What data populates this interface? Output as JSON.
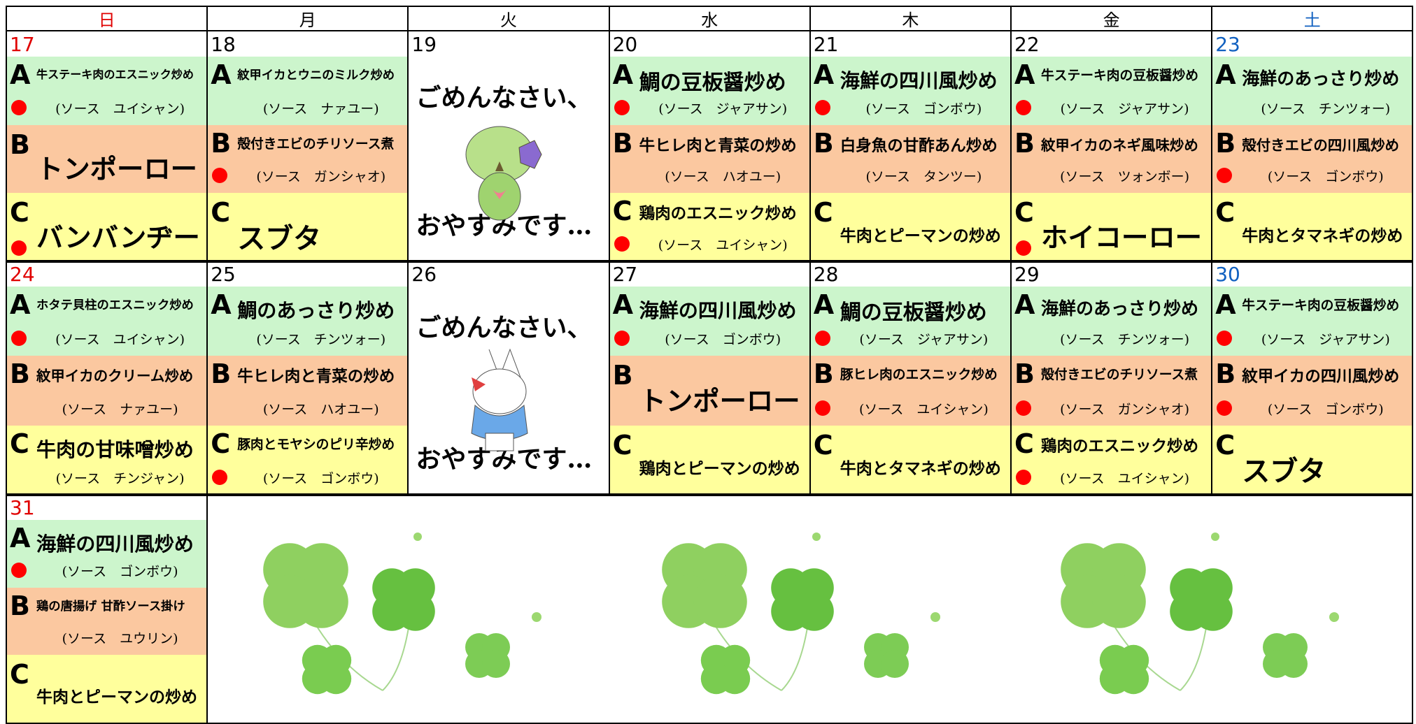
{
  "header": {
    "days": [
      "日",
      "月",
      "火",
      "水",
      "木",
      "金",
      "土"
    ]
  },
  "weeks": [
    {
      "days": [
        {
          "day": "17",
          "items": [
            {
              "letter": "A",
              "dish": "牛ステーキ肉のエスニック炒め",
              "sauce": "(ソース　ユイシャン)",
              "dot": true
            },
            {
              "letter": "B",
              "dish": "トンポーロー",
              "dot": false
            },
            {
              "letter": "C",
              "dish": "バンバンヂー",
              "dot": true
            }
          ]
        },
        {
          "day": "18",
          "items": [
            {
              "letter": "A",
              "dish": "紋甲イカとウニのミルク炒め",
              "sauce": "(ソース　ナァユー)",
              "dot": false
            },
            {
              "letter": "B",
              "dish": "殻付きエビのチリソース煮",
              "sauce": "(ソース　ガンシャオ)",
              "dot": true
            },
            {
              "letter": "C",
              "dish": "スブタ",
              "dot": false
            }
          ]
        },
        {
          "day": "19",
          "closed": [
            "ごめんなさい、",
            "おやすみです…"
          ]
        },
        {
          "day": "20",
          "items": [
            {
              "letter": "A",
              "dish": "鯛の豆板醤炒め",
              "sauce": "(ソース　ジャアサン)",
              "dot": true
            },
            {
              "letter": "B",
              "dish": "牛ヒレ肉と青菜の炒め",
              "sauce": "(ソース　ハオユー)",
              "dot": false
            },
            {
              "letter": "C",
              "dish": "鶏肉のエスニック炒め",
              "sauce": "(ソース　ユイシャン)",
              "dot": true
            }
          ]
        },
        {
          "day": "21",
          "items": [
            {
              "letter": "A",
              "dish": "海鮮の四川風炒め",
              "sauce": "(ソース　ゴンボウ)",
              "dot": true
            },
            {
              "letter": "B",
              "dish": "白身魚の甘酢あん炒め",
              "sauce": "(ソース　タンツー)",
              "dot": false
            },
            {
              "letter": "C",
              "dish": "牛肉とピーマンの炒め",
              "dot": false
            }
          ]
        },
        {
          "day": "22",
          "items": [
            {
              "letter": "A",
              "dish": "牛ステーキ肉の豆板醤炒め",
              "sauce": "(ソース　ジャアサン)",
              "dot": true
            },
            {
              "letter": "B",
              "dish": "紋甲イカのネギ風味炒め",
              "sauce": "(ソース　ツォンボー)",
              "dot": false
            },
            {
              "letter": "C",
              "dish": "ホイコーロー",
              "dot": true
            }
          ]
        },
        {
          "day": "23",
          "items": [
            {
              "letter": "A",
              "dish": "海鮮のあっさり炒め",
              "sauce": "(ソース　チンツォー)",
              "dot": false
            },
            {
              "letter": "B",
              "dish": "殻付きエビの四川風炒め",
              "sauce": "(ソース　ゴンボウ)",
              "dot": true
            },
            {
              "letter": "C",
              "dish": "牛肉とタマネギの炒め",
              "dot": false
            }
          ]
        }
      ]
    },
    {
      "days": [
        {
          "day": "24",
          "items": [
            {
              "letter": "A",
              "dish": "ホタテ貝柱のエスニック炒め",
              "sauce": "(ソース　ユイシャン)",
              "dot": true
            },
            {
              "letter": "B",
              "dish": "紋甲イカのクリーム炒め",
              "sauce": "(ソース　ナァユー)",
              "dot": false
            },
            {
              "letter": "C",
              "dish": "牛肉の甘味噌炒め",
              "sauce": "(ソース　チンジャン)",
              "dot": false
            }
          ]
        },
        {
          "day": "25",
          "items": [
            {
              "letter": "A",
              "dish": "鯛のあっさり炒め",
              "sauce": "(ソース　チンツォー)",
              "dot": false
            },
            {
              "letter": "B",
              "dish": "牛ヒレ肉と青菜の炒め",
              "sauce": "(ソース　ハオユー)",
              "dot": false
            },
            {
              "letter": "C",
              "dish": "豚肉とモヤシのピリ辛炒め",
              "sauce": "(ソース　ゴンボウ)",
              "dot": true
            }
          ]
        },
        {
          "day": "26",
          "closed": [
            "ごめんなさい、",
            "おやすみです…"
          ]
        },
        {
          "day": "27",
          "items": [
            {
              "letter": "A",
              "dish": "海鮮の四川風炒め",
              "sauce": "(ソース　ゴンボウ)",
              "dot": true
            },
            {
              "letter": "B",
              "dish": "トンポーロー",
              "dot": false
            },
            {
              "letter": "C",
              "dish": "鶏肉とピーマンの炒め",
              "dot": false
            }
          ]
        },
        {
          "day": "28",
          "items": [
            {
              "letter": "A",
              "dish": "鯛の豆板醤炒め",
              "sauce": "(ソース　ジャアサン)",
              "dot": true
            },
            {
              "letter": "B",
              "dish": "豚ヒレ肉のエスニック炒め",
              "sauce": "(ソース　ユイシャン)",
              "dot": true
            },
            {
              "letter": "C",
              "dish": "牛肉とタマネギの炒め",
              "dot": false
            }
          ]
        },
        {
          "day": "29",
          "items": [
            {
              "letter": "A",
              "dish": "海鮮のあっさり炒め",
              "sauce": "(ソース　チンツォー)",
              "dot": false
            },
            {
              "letter": "B",
              "dish": "殻付きエビのチリソース煮",
              "sauce": "(ソース　ガンシャオ)",
              "dot": true
            },
            {
              "letter": "C",
              "dish": "鶏肉のエスニック炒め",
              "sauce": "(ソース　ユイシャン)",
              "dot": true
            }
          ]
        },
        {
          "day": "30",
          "items": [
            {
              "letter": "A",
              "dish": "牛ステーキ肉の豆板醤炒め",
              "sauce": "(ソース　ジャアサン)",
              "dot": true
            },
            {
              "letter": "B",
              "dish": "紋甲イカの四川風炒め",
              "sauce": "(ソース　ゴンボウ)",
              "dot": true
            },
            {
              "letter": "C",
              "dish": "スブタ",
              "dot": false
            }
          ]
        }
      ]
    },
    {
      "days": [
        {
          "day": "31",
          "items": [
            {
              "letter": "A",
              "dish": "海鮮の四川風炒め",
              "sauce": "(ソース　ゴンボウ)",
              "dot": true
            },
            {
              "letter": "B",
              "dish": "鶏の唐揚げ 甘酢ソース掛け",
              "sauce": "(ソース　ユウリン)",
              "dot": false
            },
            {
              "letter": "C",
              "dish": "牛肉とピーマンの炒め",
              "dot": false
            }
          ]
        }
      ]
    }
  ]
}
